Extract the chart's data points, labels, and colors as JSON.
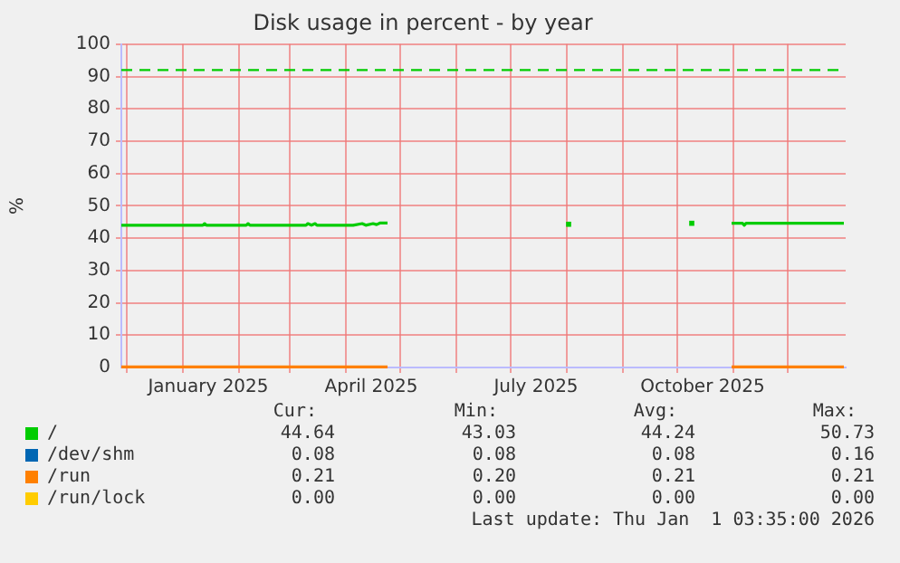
{
  "chart_data": {
    "type": "line",
    "title": "Disk usage in percent - by year",
    "ylabel": "%",
    "xlim": [
      "2024-11-28",
      "2026-01-02"
    ],
    "xticks": [
      {
        "value": "2024-12-01",
        "label": null
      },
      {
        "value": "2025-01-01",
        "label": null
      },
      {
        "value": "2025-01-15",
        "label": "January 2025"
      },
      {
        "value": "2025-02-01",
        "label": null
      },
      {
        "value": "2025-03-01",
        "label": null
      },
      {
        "value": "2025-04-01",
        "label": null
      },
      {
        "value": "2025-04-15",
        "label": "April 2025"
      },
      {
        "value": "2025-05-01",
        "label": null
      },
      {
        "value": "2025-06-01",
        "label": null
      },
      {
        "value": "2025-07-01",
        "label": null
      },
      {
        "value": "2025-07-15",
        "label": "July 2025"
      },
      {
        "value": "2025-08-01",
        "label": null
      },
      {
        "value": "2025-09-01",
        "label": null
      },
      {
        "value": "2025-10-01",
        "label": null
      },
      {
        "value": "2025-10-15",
        "label": "October 2025"
      },
      {
        "value": "2025-11-01",
        "label": null
      },
      {
        "value": "2025-12-01",
        "label": null
      }
    ],
    "ylim": [
      0,
      100
    ],
    "yticks": [
      0,
      10,
      20,
      30,
      40,
      50,
      60,
      70,
      80,
      90,
      100
    ],
    "grid": true,
    "legend": "bottom",
    "marker": "none",
    "series": [
      {
        "name": "/",
        "color": "#00cc00",
        "x": [
          "2024-11-28",
          "2025-01-12",
          "2025-01-13",
          "2025-01-14",
          "2025-02-05",
          "2025-02-06",
          "2025-02-07",
          "2025-03-10",
          "2025-03-11",
          "2025-03-13",
          "2025-03-15",
          "2025-03-16",
          "2025-04-05",
          "2025-04-10",
          "2025-04-12",
          "2025-04-16",
          "2025-04-18",
          "2025-04-20",
          "2025-04-24",
          "2025-04-25",
          "2025-10-31",
          "2025-11-06",
          "2025-11-07",
          "2025-11-08",
          "2026-01-01"
        ],
        "values": [
          44,
          44,
          44.5,
          44,
          44,
          44.5,
          44,
          44,
          44.5,
          44,
          44.5,
          44,
          44,
          44.5,
          44,
          44.5,
          44.2,
          44.7,
          44.7,
          null,
          44.6,
          44.6,
          44,
          44.6,
          44.6
        ]
      },
      {
        "type": "scatter",
        "color": "#00cc00",
        "marker": "square",
        "x": [
          "2025-08-02",
          "2025-10-09"
        ],
        "values": [
          44.3,
          44.6
        ]
      },
      {
        "name": "/dev/shm",
        "color": "#0066b3"
      },
      {
        "name": "/run",
        "color": "#ff8000",
        "x": [
          "2024-11-28",
          "2025-04-24",
          "2025-04-25",
          "2025-10-31",
          "2026-01-01"
        ],
        "values": [
          0.2,
          0.2,
          null,
          0.2,
          0.2
        ]
      },
      {
        "name": "/run/lock",
        "color": "#ffcc00"
      }
    ],
    "ref_lines": [
      {
        "axis": "y",
        "value": 92,
        "color": "#00cc00",
        "line_style": "dashed"
      }
    ],
    "annotations": [
      "Cur:",
      "Min:",
      "Avg:",
      "Max:",
      "44.64",
      "43.03",
      "44.24",
      "50.73",
      "0.08",
      "0.08",
      "0.08",
      "0.16",
      "0.21",
      "0.20",
      "0.21",
      "0.21",
      "0.00",
      "0.00",
      "0.00",
      "0.00",
      "Last update: Thu Jan  1 03:35:00 2026"
    ]
  }
}
